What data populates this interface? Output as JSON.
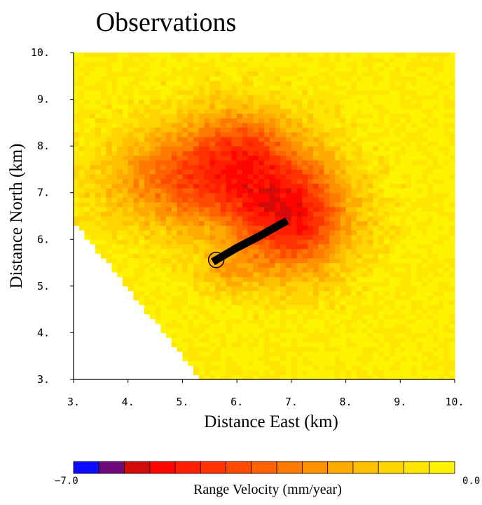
{
  "chart_data": {
    "type": "heatmap",
    "title": "Observations",
    "xlabel": "Distance East (km)",
    "ylabel": "Distance North (km)",
    "xlim": [
      3,
      10
    ],
    "ylim": [
      3,
      10
    ],
    "xticks": [
      "3.",
      "4.",
      "5.",
      "6.",
      "7.",
      "8.",
      "9.",
      "10."
    ],
    "yticks": [
      "3.",
      "4.",
      "5.",
      "6.",
      "7.",
      "8.",
      "9.",
      "10."
    ],
    "grid": false,
    "cell_size_km": 0.1,
    "value_range": [
      -7.0,
      0.0
    ],
    "field": {
      "background": -0.4,
      "lobes": [
        {
          "x": 7.0,
          "y": 6.5,
          "sx": 1.1,
          "sy": 1.25,
          "amp": -4.6
        },
        {
          "x": 5.2,
          "y": 7.3,
          "sx": 1.5,
          "sy": 1.05,
          "amp": -3.4
        },
        {
          "x": 6.1,
          "y": 8.1,
          "sx": 1.0,
          "sy": 0.9,
          "amp": -2.1
        },
        {
          "x": 5.8,
          "y": 5.3,
          "sx": 0.6,
          "sy": 0.45,
          "amp": -1.2
        }
      ],
      "coverage_cut": {
        "corner_top": [
          3.0,
          6.4
        ],
        "corner_bottom": [
          5.35,
          3.0
        ]
      }
    },
    "fault_trace": {
      "x": [
        5.62,
        6.0,
        6.4,
        6.86
      ],
      "y": [
        5.56,
        5.82,
        6.06,
        6.36
      ]
    },
    "source_marker": {
      "x": 5.62,
      "y": 5.56
    },
    "colorbar": {
      "label": "Range Velocity (mm/year)",
      "min_label": "−7.0",
      "max_label": "0.0",
      "colors": [
        "#0d0bff",
        "#6f0a7c",
        "#d40a08",
        "#ff0500",
        "#ff1f00",
        "#ff3200",
        "#ff4a00",
        "#ff6200",
        "#ff7a00",
        "#ff9200",
        "#ffaa00",
        "#ffc000",
        "#ffd400",
        "#ffe600",
        "#fff400"
      ]
    }
  }
}
